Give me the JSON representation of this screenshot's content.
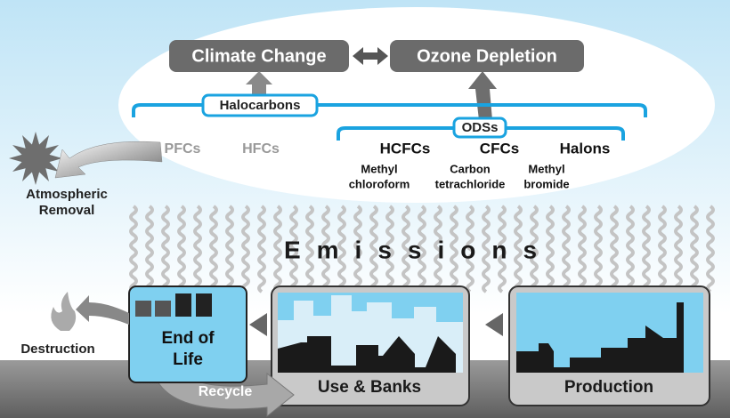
{
  "diagram": {
    "impacts": {
      "left": "Climate Change",
      "right": "Ozone Depletion"
    },
    "groups": {
      "halocarbons": "Halocarbons",
      "odss": "ODSs"
    },
    "gases": [
      "PFCs",
      "HFCs",
      "HCFCs",
      "CFCs",
      "Halons"
    ],
    "sub_gases": [
      [
        "Methyl",
        "chloroform"
      ],
      [
        "Carbon",
        "tetrachloride"
      ],
      [
        "Methyl",
        "bromide"
      ]
    ],
    "sink": [
      "Atmospheric",
      "Removal"
    ],
    "emissions": "Emissions",
    "stages": {
      "end_of_life": [
        "End of",
        "Life"
      ],
      "use_banks": "Use & Banks",
      "production": "Production"
    },
    "destruction": "Destruction",
    "recycle": "Recycle"
  }
}
